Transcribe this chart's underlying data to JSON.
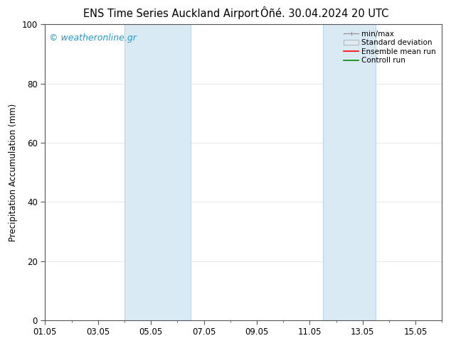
{
  "title_left": "ENS Time Series Auckland Airport",
  "title_right": "Ôñé. 30.04.2024 20 UTC",
  "ylabel": "Precipitation Accumulation (mm)",
  "watermark": "© weatheronline.gr",
  "watermark_color": "#2299cc",
  "ylim": [
    0,
    100
  ],
  "yticks": [
    0,
    20,
    40,
    60,
    80,
    100
  ],
  "xlim": [
    0,
    15
  ],
  "xtick_labels": [
    "01.05",
    "03.05",
    "05.05",
    "07.05",
    "09.05",
    "11.05",
    "13.05",
    "15.05"
  ],
  "xtick_positions": [
    0,
    2,
    4,
    6,
    8,
    10,
    12,
    14
  ],
  "shaded_regions": [
    {
      "start": 3.0,
      "end": 5.5
    },
    {
      "start": 10.5,
      "end": 12.5
    }
  ],
  "shade_color": "#daeaf5",
  "shade_edge_color": "#b0cce0",
  "legend_labels": [
    "min/max",
    "Standard deviation",
    "Ensemble mean run",
    "Controll run"
  ],
  "legend_line_color": "#999999",
  "legend_patch_fc": "#e0eaf5",
  "legend_patch_ec": "#aaaaaa",
  "legend_red": "#ff0000",
  "legend_green": "#008800",
  "background_color": "#ffffff",
  "grid_color": "#dddddd",
  "spine_color": "#555555",
  "title_fontsize": 10.5,
  "axis_label_fontsize": 8.5,
  "tick_fontsize": 8.5,
  "watermark_fontsize": 9,
  "legend_fontsize": 7.5
}
